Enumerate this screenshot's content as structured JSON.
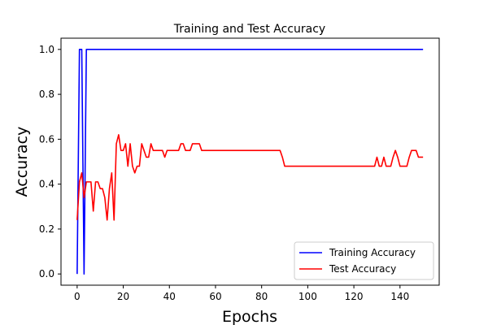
{
  "chart_data": {
    "type": "line",
    "title": "Training and Test Accuracy",
    "xlabel": "Epochs",
    "ylabel": "Accuracy",
    "xlim": [
      -7,
      157
    ],
    "ylim": [
      -0.05,
      1.05
    ],
    "xticks": [
      0,
      20,
      40,
      60,
      80,
      100,
      120,
      140
    ],
    "xtick_labels": [
      "0",
      "20",
      "40",
      "60",
      "80",
      "100",
      "120",
      "140"
    ],
    "yticks": [
      0.0,
      0.2,
      0.4,
      0.6,
      0.8,
      1.0
    ],
    "ytick_labels": [
      "0.0",
      "0.2",
      "0.4",
      "0.6",
      "0.8",
      "1.0"
    ],
    "grid": false,
    "legend_position": "lower-right",
    "series": [
      {
        "name": "Training Accuracy",
        "color": "#0000ff",
        "x": [
          0,
          1,
          2,
          3,
          4,
          150
        ],
        "y": [
          0.0,
          1.0,
          1.0,
          0.0,
          1.0,
          1.0
        ]
      },
      {
        "name": "Test Accuracy",
        "color": "#ff0000",
        "x": [
          0,
          1,
          2,
          3,
          4,
          5,
          6,
          7,
          8,
          9,
          10,
          11,
          12,
          13,
          14,
          15,
          16,
          17,
          18,
          19,
          20,
          21,
          22,
          23,
          24,
          25,
          26,
          27,
          28,
          29,
          30,
          31,
          32,
          33,
          34,
          35,
          36,
          37,
          38,
          39,
          40,
          41,
          42,
          43,
          44,
          45,
          46,
          47,
          48,
          49,
          50,
          51,
          52,
          53,
          54,
          88,
          89,
          90,
          129,
          130,
          131,
          132,
          133,
          134,
          135,
          136,
          137,
          138,
          139,
          140,
          141,
          142,
          143,
          144,
          145,
          146,
          147,
          148,
          149,
          150
        ],
        "y": [
          0.24,
          0.41,
          0.45,
          0.34,
          0.41,
          0.41,
          0.41,
          0.28,
          0.41,
          0.41,
          0.38,
          0.38,
          0.34,
          0.24,
          0.38,
          0.45,
          0.24,
          0.58,
          0.62,
          0.55,
          0.55,
          0.58,
          0.48,
          0.58,
          0.48,
          0.45,
          0.48,
          0.48,
          0.58,
          0.55,
          0.52,
          0.52,
          0.58,
          0.55,
          0.55,
          0.55,
          0.55,
          0.55,
          0.52,
          0.55,
          0.55,
          0.55,
          0.55,
          0.55,
          0.55,
          0.58,
          0.58,
          0.55,
          0.55,
          0.55,
          0.58,
          0.58,
          0.58,
          0.58,
          0.55,
          0.55,
          0.52,
          0.48,
          0.48,
          0.52,
          0.48,
          0.48,
          0.52,
          0.48,
          0.48,
          0.48,
          0.52,
          0.55,
          0.52,
          0.48,
          0.48,
          0.48,
          0.48,
          0.52,
          0.55,
          0.55,
          0.55,
          0.52,
          0.52,
          0.52
        ]
      }
    ]
  }
}
